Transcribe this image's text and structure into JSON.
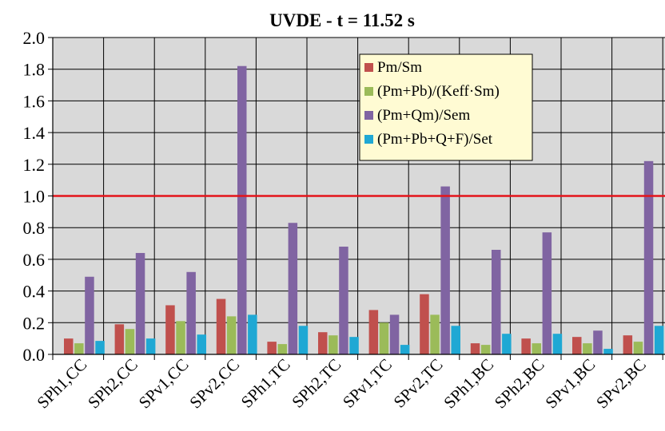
{
  "chart_data": {
    "type": "bar",
    "title": "UVDE - t = 11.52 s",
    "xlabel": "",
    "ylabel": "",
    "ylim": [
      0,
      2.0
    ],
    "yticks": [
      "0.0",
      "0.2",
      "0.4",
      "0.6",
      "0.8",
      "1.0",
      "1.2",
      "1.4",
      "1.6",
      "1.8",
      "2.0"
    ],
    "grid": true,
    "legend_position": "top-center",
    "reference_line": {
      "value": 1.0,
      "color": "#e4141b"
    },
    "plot_background": "#d9d9d9",
    "categories": [
      "SPh1,CC",
      "SPh2,CC",
      "SPv1,CC",
      "SPv2,CC",
      "SPh1,TC",
      "SPh2,TC",
      "SPv1,TC",
      "SPv2,TC",
      "SPh1,BC",
      "SPh2,BC",
      "SPv1,BC",
      "SPv2,BC"
    ],
    "series": [
      {
        "name": "Pm/Sm",
        "color": "#c0504d",
        "values": [
          0.1,
          0.19,
          0.31,
          0.35,
          0.08,
          0.14,
          0.28,
          0.38,
          0.07,
          0.1,
          0.11,
          0.12
        ]
      },
      {
        "name": "(Pm+Pb)/(Keff·Sm)",
        "color": "#9bbb59",
        "values": [
          0.07,
          0.16,
          0.21,
          0.24,
          0.065,
          0.12,
          0.2,
          0.25,
          0.06,
          0.07,
          0.07,
          0.08
        ]
      },
      {
        "name": "(Pm+Qm)/Sem",
        "color": "#8064a2",
        "values": [
          0.49,
          0.64,
          0.52,
          1.82,
          0.83,
          0.68,
          0.25,
          1.06,
          0.66,
          0.77,
          0.15,
          1.22
        ]
      },
      {
        "name": "(Pm+Pb+Q+F)/Set",
        "color": "#1fa8d4",
        "values": [
          0.085,
          0.1,
          0.125,
          0.25,
          0.18,
          0.11,
          0.06,
          0.18,
          0.13,
          0.13,
          0.035,
          0.18
        ]
      }
    ]
  }
}
